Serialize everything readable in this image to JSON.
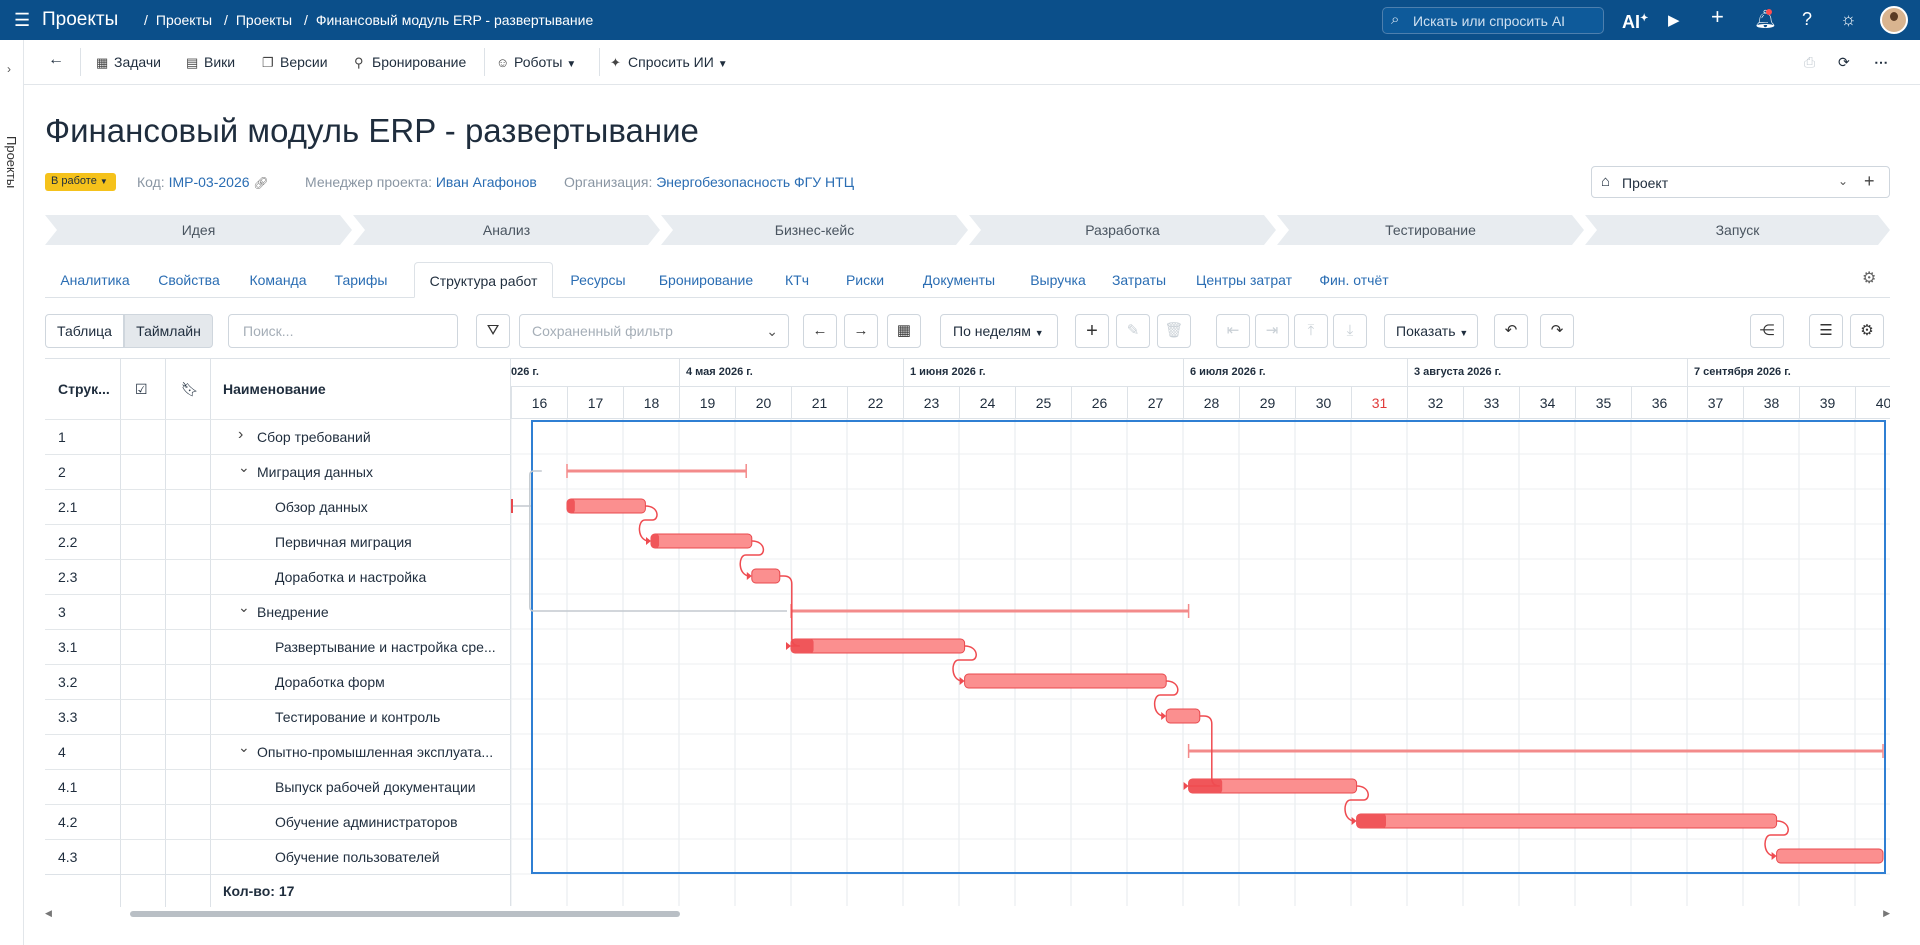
{
  "topbar": {
    "app_title": "Проекты",
    "crumbs": [
      "Проекты",
      "Проекты",
      "Финансовый модуль ERP - развертывание"
    ],
    "search_placeholder": "Искать или спросить AI",
    "ai_label": "AI"
  },
  "sidebar": {
    "label": "Проекты"
  },
  "toolbar": {
    "back": "←",
    "items": [
      "Задачи",
      "Вики",
      "Версии",
      "Бронирование",
      "Роботы",
      "Спросить ИИ"
    ]
  },
  "project": {
    "title": "Финансовый модуль ERP - развертывание",
    "status": "В работе",
    "code_label": "Код:",
    "code": "IMP-03-2026",
    "manager_label": "Менеджер проекта:",
    "manager": "Иван Агафонов",
    "org_label": "Организация:",
    "org": "Энергобезопасность ФГУ НТЦ",
    "type_select": "Проект"
  },
  "stages": [
    "Идея",
    "Анализ",
    "Бизнес-кейс",
    "Разработка",
    "Тестирование",
    "Запуск"
  ],
  "tabs": [
    "Аналитика",
    "Свойства",
    "Команда",
    "Тарифы",
    "Структура работ",
    "Ресурсы",
    "Бронирование",
    "КТч",
    "Риски",
    "Документы",
    "Выручка",
    "Затраты",
    "Центры затрат",
    "Фин. отчёт"
  ],
  "active_tab": "Структура работ",
  "controls": {
    "view_table": "Таблица",
    "view_timeline": "Таймлайн",
    "search_placeholder": "Поиск...",
    "saved_filter_placeholder": "Сохраненный фильтр",
    "scale": "По неделям",
    "show": "Показать"
  },
  "table": {
    "headers": [
      "Струк...",
      "",
      "",
      "Наименование"
    ],
    "count_label": "Кол-во: 17",
    "rows": [
      {
        "num": "1",
        "name": "Сбор требований",
        "level": 0,
        "expander": "collapsed"
      },
      {
        "num": "2",
        "name": "Миграция данных",
        "level": 0,
        "expander": "expanded"
      },
      {
        "num": "2.1",
        "name": "Обзор данных",
        "level": 1
      },
      {
        "num": "2.2",
        "name": "Первичная миграция",
        "level": 1
      },
      {
        "num": "2.3",
        "name": "Доработка и настройка",
        "level": 1
      },
      {
        "num": "3",
        "name": "Внедрение",
        "level": 0,
        "expander": "expanded"
      },
      {
        "num": "3.1",
        "name": "Развертывание и настройка сре...",
        "level": 1
      },
      {
        "num": "3.2",
        "name": "Доработка форм",
        "level": 1
      },
      {
        "num": "3.3",
        "name": "Тестирование и контроль",
        "level": 1
      },
      {
        "num": "4",
        "name": "Опытно-промышленная эксплуата...",
        "level": 0,
        "expander": "expanded"
      },
      {
        "num": "4.1",
        "name": "Выпуск рабочей документации",
        "level": 1
      },
      {
        "num": "4.2",
        "name": "Обучение администраторов",
        "level": 1
      },
      {
        "num": "4.3",
        "name": "Обучение пользователей",
        "level": 1
      }
    ]
  },
  "timeline": {
    "months": [
      "026 г.",
      "4 мая 2026 г.",
      "1 июня 2026 г.",
      "6 июля 2026 г.",
      "3 августа 2026 г.",
      "7 сентября 2026 г."
    ],
    "month_start_weeks": [
      16,
      19,
      23,
      28,
      32,
      37
    ],
    "weeks": [
      "16",
      "17",
      "18",
      "19",
      "20",
      "21",
      "22",
      "23",
      "24",
      "25",
      "26",
      "27",
      "28",
      "29",
      "30",
      "31",
      "32",
      "33",
      "34",
      "35",
      "36",
      "37",
      "38",
      "39",
      "40"
    ],
    "highlight_week": "31",
    "bars": [
      {
        "row": 1,
        "type": "summary",
        "start_week": 17.0,
        "end_week": 20.2
      },
      {
        "row": 2,
        "type": "task",
        "start_week": 17.0,
        "end_week": 18.4,
        "progress": 0.1
      },
      {
        "row": 3,
        "type": "task",
        "start_week": 18.5,
        "end_week": 20.3,
        "progress": 0.08
      },
      {
        "row": 4,
        "type": "task",
        "start_week": 20.3,
        "end_week": 20.8,
        "progress": 0.0
      },
      {
        "row": 5,
        "type": "summary",
        "start_week": 21.0,
        "end_week": 28.1
      },
      {
        "row": 6,
        "type": "task",
        "start_week": 21.0,
        "end_week": 24.1,
        "progress": 0.13
      },
      {
        "row": 7,
        "type": "task",
        "start_week": 24.1,
        "end_week": 27.7,
        "progress": 0.0
      },
      {
        "row": 8,
        "type": "task",
        "start_week": 27.7,
        "end_week": 28.3,
        "progress": 0.0
      },
      {
        "row": 9,
        "type": "summary",
        "start_week": 28.1,
        "end_week": 40.5
      },
      {
        "row": 10,
        "type": "task",
        "start_week": 28.1,
        "end_week": 31.1,
        "progress": 0.2
      },
      {
        "row": 11,
        "type": "task",
        "start_week": 31.1,
        "end_week": 38.6,
        "progress": 0.07
      },
      {
        "row": 12,
        "type": "task",
        "start_week": 38.6,
        "end_week": 40.5,
        "progress": 0.0
      }
    ],
    "colors": {
      "bar": "#fb8f8f",
      "bar_progress": "#f0565a",
      "bar_border": "#e8494e",
      "summary": "#f38b8b",
      "link": "#ef4b50",
      "selection": "#2f7fd3"
    }
  }
}
